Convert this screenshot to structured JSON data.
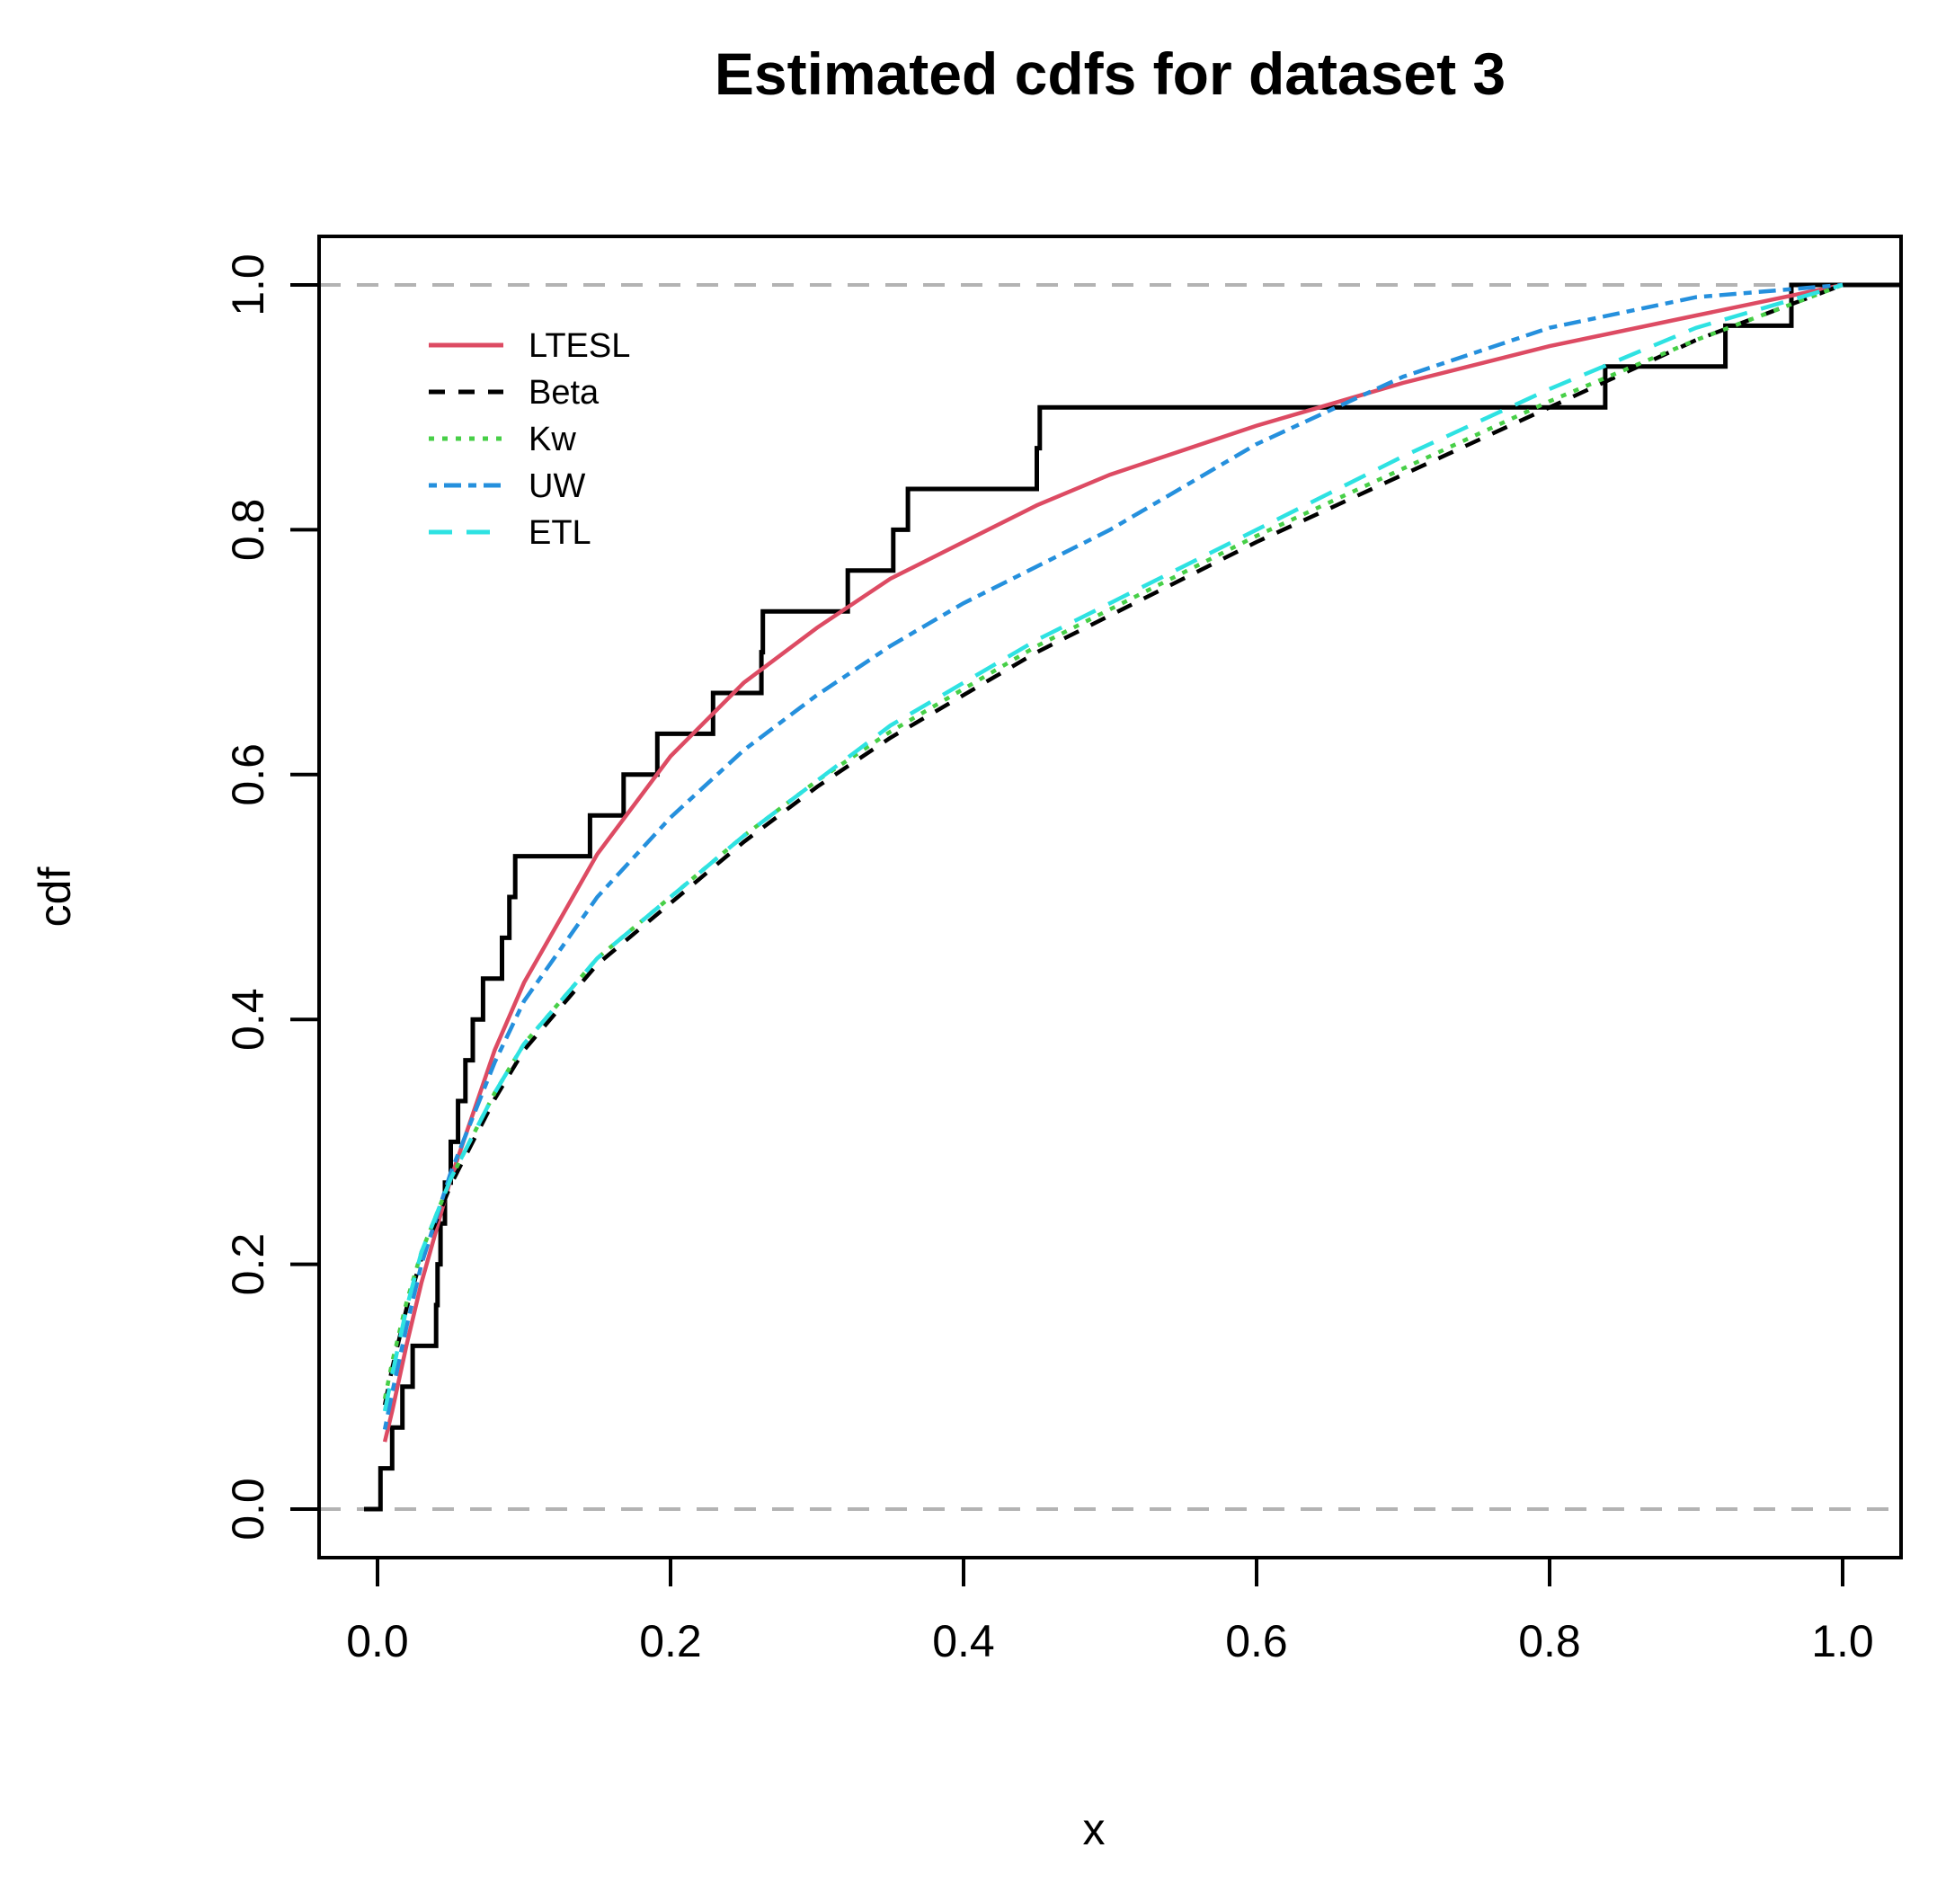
{
  "title": "Estimated cdfs for dataset 3",
  "axes": {
    "x_label": "x",
    "y_label": "cdf",
    "x_tick_labels": [
      "0.0",
      "0.2",
      "0.4",
      "0.6",
      "0.8",
      "1.0"
    ],
    "y_tick_labels": [
      "0.0",
      "0.2",
      "0.4",
      "0.6",
      "0.8",
      "1.0"
    ]
  },
  "colors": {
    "ltesl_red": "#dd4b63",
    "beta_black": "#000000",
    "kw_green": "#47cf47",
    "uw_blue": "#2590dd",
    "etl_cyan": "#2ee2e2",
    "reference_gray": "#b3b3b3",
    "axis_black": "#000000",
    "background": "#ffffff"
  },
  "legend": {
    "entries": [
      "LTESL",
      "Beta",
      "Kw",
      "UW",
      "ETL"
    ]
  },
  "chart_data": {
    "type": "line",
    "title": "Estimated cdfs for dataset 3",
    "xlabel": "x",
    "ylabel": "cdf",
    "xlim": [
      0,
      1
    ],
    "ylim": [
      0,
      1
    ],
    "x_ticks": [
      0.0,
      0.2,
      0.4,
      0.6,
      0.8,
      1.0
    ],
    "y_ticks": [
      0.0,
      0.2,
      0.4,
      0.6,
      0.8,
      1.0
    ],
    "grid": false,
    "legend_position": "upper-left-inside",
    "reference_lines": [
      {
        "y": 0.0,
        "style": "dashed",
        "color": "#b3b3b3"
      },
      {
        "y": 1.0,
        "style": "dashed",
        "color": "#b3b3b3"
      }
    ],
    "empirical_cdf": {
      "name": "empirical-step-function",
      "style": "step",
      "color": "#000000",
      "n": 30,
      "jump_x": [
        0.002,
        0.01,
        0.017,
        0.024,
        0.04,
        0.041,
        0.043,
        0.046,
        0.05,
        0.055,
        0.06,
        0.065,
        0.072,
        0.085,
        0.09,
        0.094,
        0.145,
        0.168,
        0.191,
        0.229,
        0.262,
        0.263,
        0.321,
        0.352,
        0.362,
        0.45,
        0.452,
        0.838,
        0.92,
        0.965
      ]
    },
    "curve_x": [
      0.005,
      0.01,
      0.02,
      0.03,
      0.05,
      0.08,
      0.1,
      0.15,
      0.2,
      0.25,
      0.3,
      0.35,
      0.4,
      0.45,
      0.5,
      0.6,
      0.7,
      0.8,
      0.9,
      1.0
    ],
    "series": [
      {
        "name": "LTESL",
        "color": "#dd4b63",
        "linetype": "solid",
        "y": [
          0.055,
          0.08,
          0.135,
          0.185,
          0.27,
          0.375,
          0.43,
          0.535,
          0.615,
          0.675,
          0.72,
          0.76,
          0.79,
          0.82,
          0.845,
          0.885,
          0.92,
          0.95,
          0.975,
          1.0
        ]
      },
      {
        "name": "Beta",
        "color": "#000000",
        "linetype": "dashed",
        "y": [
          0.085,
          0.115,
          0.165,
          0.205,
          0.265,
          0.335,
          0.375,
          0.445,
          0.495,
          0.545,
          0.59,
          0.63,
          0.665,
          0.7,
          0.73,
          0.79,
          0.845,
          0.9,
          0.955,
          1.0
        ]
      },
      {
        "name": "Kw",
        "color": "#47cf47",
        "linetype": "dotted",
        "y": [
          0.09,
          0.12,
          0.17,
          0.21,
          0.27,
          0.34,
          0.38,
          0.45,
          0.5,
          0.55,
          0.595,
          0.635,
          0.67,
          0.705,
          0.735,
          0.795,
          0.85,
          0.905,
          0.955,
          1.0
        ]
      },
      {
        "name": "UW",
        "color": "#2590dd",
        "linetype": "dashdot",
        "y": [
          0.065,
          0.095,
          0.15,
          0.2,
          0.275,
          0.365,
          0.415,
          0.5,
          0.565,
          0.62,
          0.665,
          0.705,
          0.74,
          0.77,
          0.8,
          0.87,
          0.925,
          0.965,
          0.99,
          1.0
        ]
      },
      {
        "name": "ETL",
        "color": "#2ee2e2",
        "linetype": "longdash",
        "y": [
          0.08,
          0.11,
          0.165,
          0.21,
          0.27,
          0.34,
          0.38,
          0.45,
          0.5,
          0.55,
          0.595,
          0.64,
          0.675,
          0.71,
          0.74,
          0.8,
          0.86,
          0.915,
          0.965,
          1.0
        ]
      }
    ]
  }
}
